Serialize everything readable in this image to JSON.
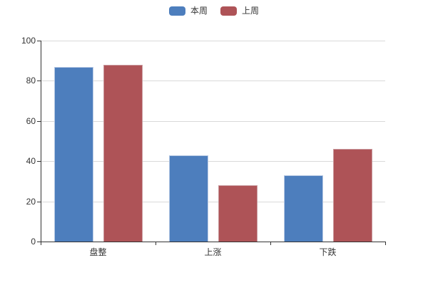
{
  "chart_data": {
    "type": "bar",
    "title": "",
    "categories": [
      "盘整",
      "上涨",
      "下跌"
    ],
    "series": [
      {
        "name": "本周",
        "color": "#4d7ebd",
        "border": "#b7c9e4",
        "values": [
          87,
          43,
          33
        ]
      },
      {
        "name": "上周",
        "color": "#ae5357",
        "border": "#c99a9e",
        "values": [
          88,
          28,
          46
        ]
      }
    ],
    "ylim": [
      0,
      100
    ],
    "yticks": [
      0,
      20,
      40,
      60,
      80,
      100
    ],
    "xlabel": "",
    "ylabel": "",
    "grid": true,
    "legend_position": "top",
    "colors": {
      "axis": "#333333",
      "grid": "#d9d9d9",
      "text": "#333333",
      "background": "#ffffff"
    }
  }
}
